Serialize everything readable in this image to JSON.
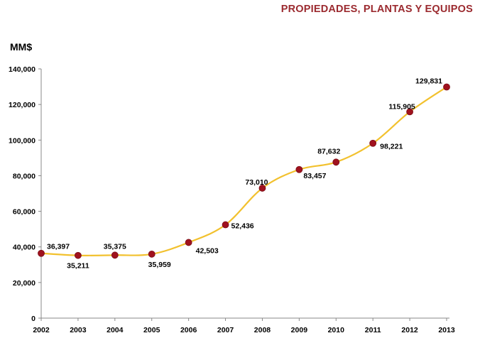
{
  "chart_data": {
    "type": "line",
    "title": "PROPIEDADES, PLANTAS Y EQUIPOS",
    "ylabel": "MM$",
    "xlabel": "",
    "x": [
      "2002",
      "2003",
      "2004",
      "2005",
      "2006",
      "2007",
      "2008",
      "2009",
      "2010",
      "2011",
      "2012",
      "2013"
    ],
    "series": [
      {
        "name": "Propiedades, plantas y equipos",
        "values": [
          36397,
          35211,
          35375,
          35959,
          42503,
          52436,
          73010,
          83457,
          87632,
          98221,
          115905,
          129831
        ],
        "labels": [
          "36,397",
          "35,211",
          "35,375",
          "35,959",
          "42,503",
          "52,436",
          "73,010",
          "83,457",
          "87,632",
          "98,221",
          "115,905",
          "129,831"
        ]
      }
    ],
    "ylim": [
      0,
      140000
    ],
    "yticks": [
      0,
      20000,
      40000,
      60000,
      80000,
      100000,
      120000,
      140000
    ],
    "ytick_labels": [
      "0",
      "20,000",
      "40,000",
      "60,000",
      "80,000",
      "100,000",
      "120,000",
      "140,000"
    ],
    "grid": false,
    "legend": "none",
    "colors": {
      "line": "#f2c12e",
      "marker": "#a0121e",
      "title": "#9b2a2f"
    }
  }
}
